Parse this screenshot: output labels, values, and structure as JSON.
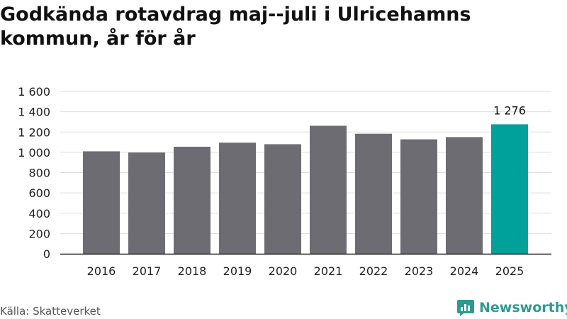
{
  "title": "Godkända rotavdrag maj--juli i Ulricehamns kommun, år för år",
  "source": "Källa: Skatteverket",
  "logo": {
    "text": "Newsworthy",
    "icon": "newsworthy-logo-icon"
  },
  "colors": {
    "bar": "#6d6c72",
    "highlight": "#00a19a",
    "grid": "#dddddd",
    "axis": "#222222"
  },
  "chart_data": {
    "type": "bar",
    "title": "Godkända rotavdrag maj--juli i Ulricehamns kommun, år för år",
    "xlabel": "",
    "ylabel": "",
    "categories": [
      "2016",
      "2017",
      "2018",
      "2019",
      "2020",
      "2021",
      "2022",
      "2023",
      "2024",
      "2025"
    ],
    "values": [
      1010,
      998,
      1055,
      1095,
      1080,
      1262,
      1183,
      1128,
      1150,
      1276
    ],
    "highlight_index": 9,
    "data_labels": [
      {
        "index": 9,
        "text": "1 276"
      }
    ],
    "ylim": [
      0,
      1600
    ],
    "yticks": [
      0,
      200,
      400,
      600,
      800,
      1000,
      1200,
      1400,
      1600
    ],
    "ytick_labels": [
      "0",
      "200",
      "400",
      "600",
      "800",
      "1 000",
      "1 200",
      "1 400",
      "1 600"
    ],
    "grid": true,
    "legend": "none"
  }
}
